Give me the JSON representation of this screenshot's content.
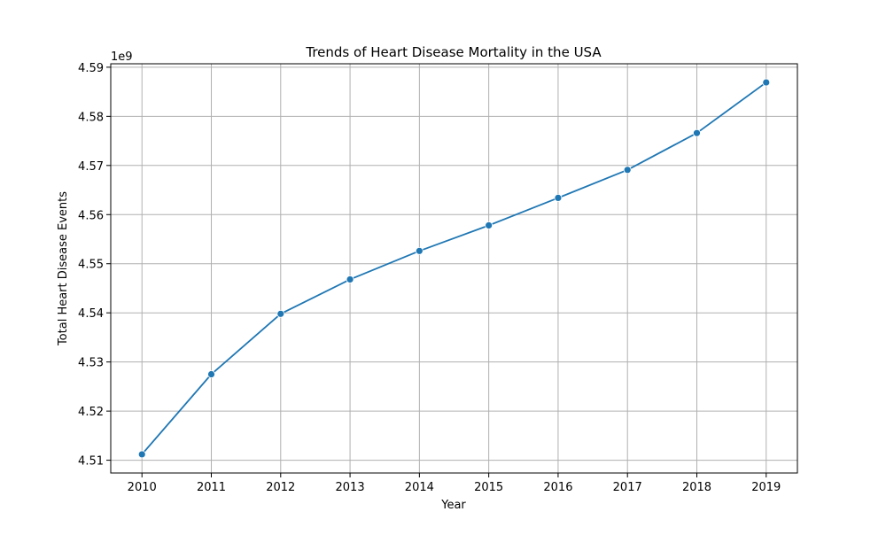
{
  "chart_data": {
    "type": "line",
    "title": "Trends of Heart Disease Mortality in the USA",
    "xlabel": "Year",
    "ylabel": "Total Heart Disease Events",
    "y_offset_label": "1e9",
    "x": [
      2010,
      2011,
      2012,
      2013,
      2014,
      2015,
      2016,
      2017,
      2018,
      2019
    ],
    "x_tick_labels": [
      "2010",
      "2011",
      "2012",
      "2013",
      "2014",
      "2015",
      "2016",
      "2017",
      "2018",
      "2019"
    ],
    "y_ticks": [
      4.51,
      4.52,
      4.53,
      4.54,
      4.55,
      4.56,
      4.57,
      4.58,
      4.59
    ],
    "y_tick_labels": [
      "4.51",
      "4.52",
      "4.53",
      "4.54",
      "4.55",
      "4.56",
      "4.57",
      "4.58",
      "4.59"
    ],
    "y_unit_multiplier": 1000000000,
    "series": [
      {
        "values": [
          4.5112,
          4.5275,
          4.5398,
          4.5468,
          4.5526,
          4.5578,
          4.5634,
          4.5691,
          4.5766,
          4.5869
        ],
        "color": "#1f77b4",
        "marker": "circle"
      }
    ],
    "xlim": [
      2009.55,
      2019.45
    ],
    "ylim": [
      4.5074,
      4.5907
    ],
    "grid": true
  }
}
